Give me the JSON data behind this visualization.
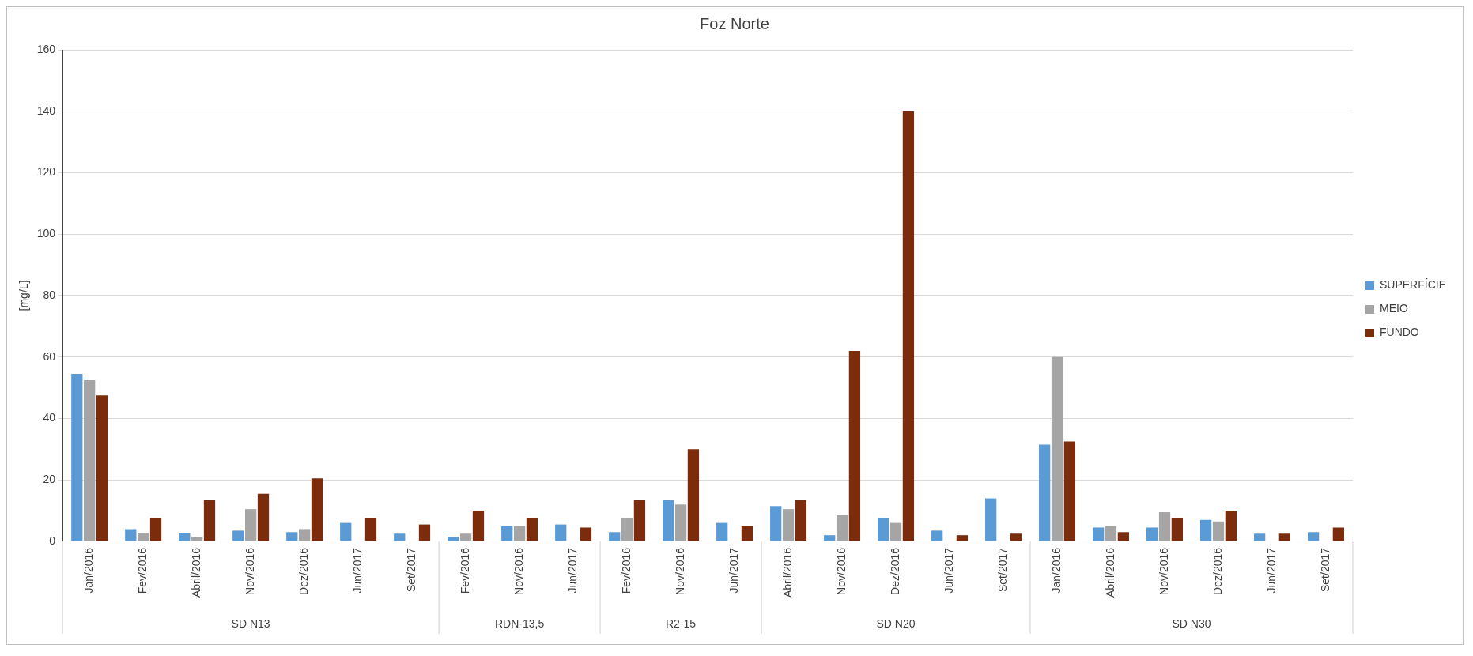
{
  "chart_data": {
    "type": "bar",
    "title": "Foz Norte",
    "ylabel": "[mg/L]",
    "categories": [
      "Jan/2016",
      "Fev/2016",
      "Abril/2016",
      "Nov/2016",
      "Dez/2016",
      "Jun/2017",
      "Set/2017",
      "Fev/2016",
      "Nov/2016",
      "Jun/2017",
      "Fev/2016",
      "Nov/2016",
      "Jun/2017",
      "Abril/2016",
      "Nov/2016",
      "Dez/2016",
      "Jun/2017",
      "Set/2017",
      "Jan/2016",
      "Abril/2016",
      "Nov/2016",
      "Dez/2016",
      "Jun/2017",
      "Set/2017"
    ],
    "series": [
      {
        "name": "SUPERFÍCIE",
        "color": "#5b9bd5",
        "values": [
          54.5,
          4,
          2.8,
          3.5,
          3,
          6,
          2.5,
          1.5,
          5,
          5.5,
          3,
          13.5,
          6,
          11.5,
          2,
          7.5,
          3.5,
          14,
          31.5,
          4.5,
          4.5,
          7,
          2.5,
          3
        ]
      },
      {
        "name": "MEIO",
        "color": "#a5a5a5",
        "values": [
          52.5,
          2.8,
          1.5,
          10.5,
          4,
          null,
          null,
          2.5,
          5,
          null,
          7.5,
          12,
          null,
          10.5,
          8.5,
          6,
          null,
          null,
          60,
          5,
          9.5,
          6.5,
          null,
          null
        ]
      },
      {
        "name": "FUNDO",
        "color": "#7b2c0c",
        "values": [
          47.5,
          7.5,
          13.5,
          15.5,
          20.5,
          7.5,
          5.5,
          10,
          7.5,
          4.5,
          13.5,
          30,
          5,
          13.5,
          62,
          140,
          2,
          2.5,
          32.5,
          3,
          7.5,
          10,
          2.5,
          4.5
        ]
      }
    ],
    "ylim": [
      0,
      160
    ],
    "yticks": [
      0,
      20,
      40,
      60,
      80,
      100,
      120,
      140,
      160
    ],
    "grid": "y",
    "legend": "right",
    "annotations": [
      "SD N13",
      "RDN-13,5",
      "R2-15",
      "SD N20",
      "SD N30"
    ]
  }
}
